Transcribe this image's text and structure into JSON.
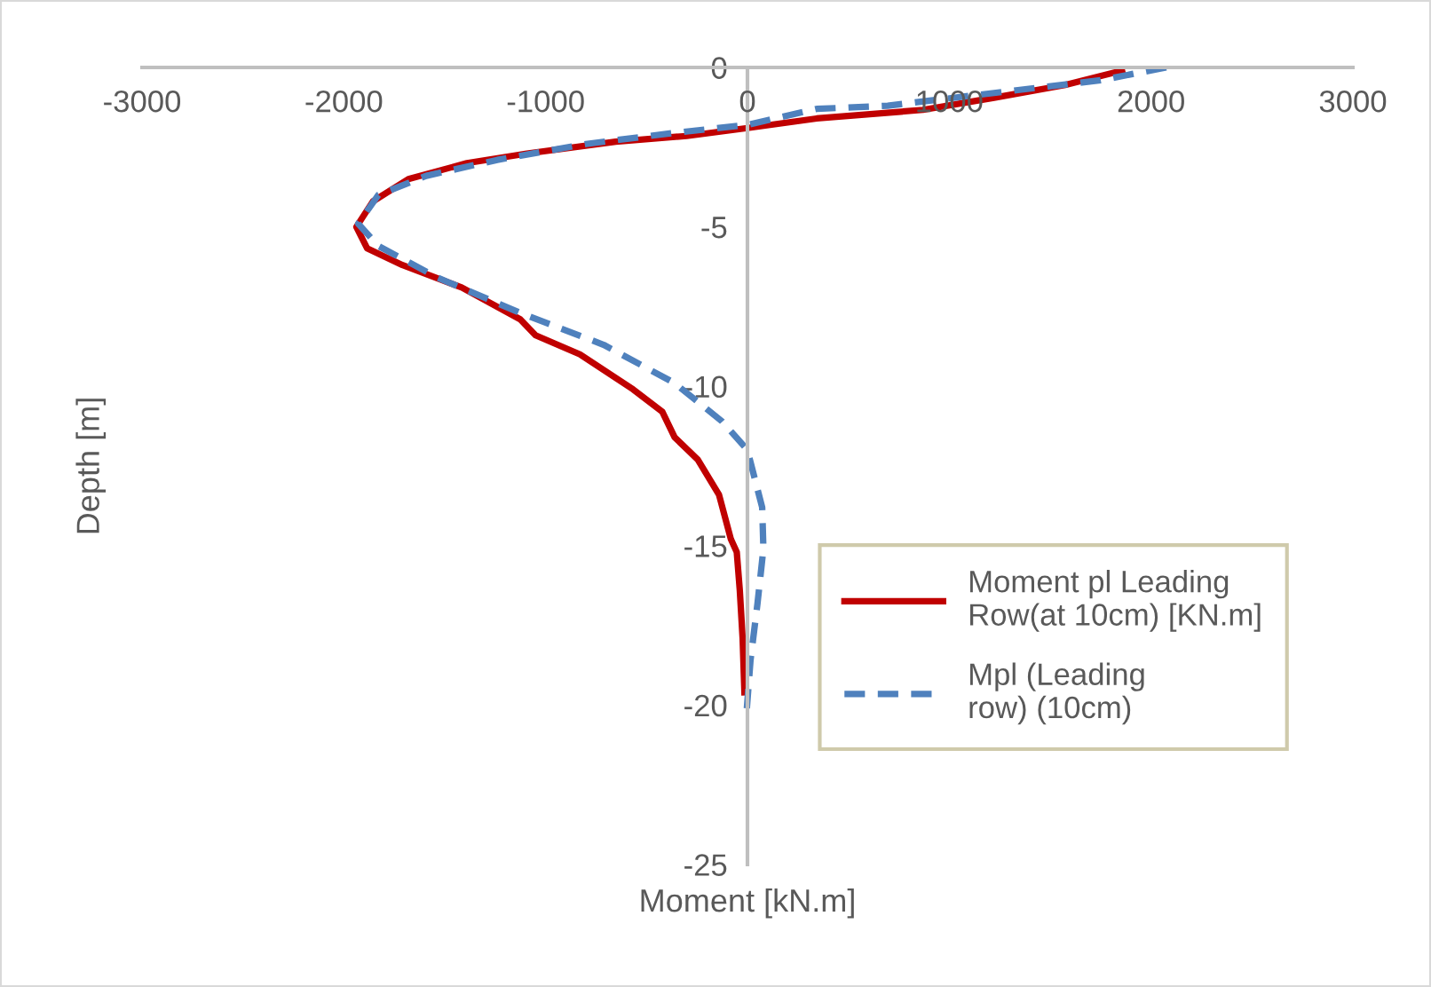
{
  "chart_data": {
    "type": "line",
    "xlabel": "Moment [kN.m]",
    "ylabel": "Depth [m]",
    "xlim": [
      -3000,
      3000
    ],
    "xticks": [
      -3000,
      -2000,
      -1000,
      0,
      1000,
      2000,
      3000
    ],
    "ylim": [
      -25,
      0
    ],
    "yticks": [
      -25,
      -20,
      -15,
      -10,
      -5,
      0
    ],
    "grid": false,
    "legend": "right",
    "marker": "none",
    "series": [
      {
        "name": "Moment pl Leading Row(at 10cm) [KN.m]",
        "color": "#c00000",
        "line_style": "solid",
        "x": [
          1856,
          1574,
          1222,
          870,
          343,
          0,
          -302,
          -653,
          -1093,
          -1390,
          -1680,
          -1856,
          -1938,
          -1885,
          -1709,
          -1416,
          -1126,
          -1050,
          -830,
          -566,
          -422,
          -361,
          -246,
          -141,
          -82,
          -53,
          -38,
          -24,
          -15
        ],
        "values": [
          -0.1,
          -0.55,
          -0.95,
          -1.33,
          -1.6,
          -1.9,
          -2.15,
          -2.33,
          -2.7,
          -3.0,
          -3.5,
          -4.2,
          -5.0,
          -5.67,
          -6.2,
          -6.9,
          -7.9,
          -8.4,
          -9.0,
          -10.1,
          -10.8,
          -11.6,
          -12.3,
          -13.4,
          -14.8,
          -15.2,
          -16.4,
          -17.9,
          -19.6
        ]
      },
      {
        "name": "Mpl (Leading row) (10cm)",
        "color": "#4f81bd",
        "line_style": "dashed",
        "x": [
          2075,
          1750,
          1222,
          695,
          343,
          0,
          -361,
          -800,
          -1240,
          -1592,
          -1829,
          -1929,
          -1829,
          -1533,
          -1126,
          -712,
          -361,
          -126,
          0,
          20,
          73,
          79,
          50,
          15,
          -3
        ],
        "values": [
          0,
          -0.4,
          -0.8,
          -1.2,
          -1.3,
          -1.8,
          -2.05,
          -2.4,
          -2.9,
          -3.4,
          -4.0,
          -4.9,
          -5.6,
          -6.6,
          -7.7,
          -8.7,
          -9.9,
          -11.1,
          -12.0,
          -12.5,
          -13.8,
          -15.1,
          -16.8,
          -18.6,
          -20.1
        ]
      }
    ]
  }
}
